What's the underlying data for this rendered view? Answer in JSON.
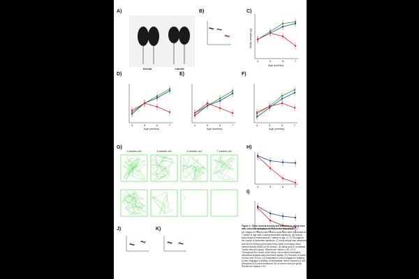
{
  "panels": {
    "A": {
      "label": "A)",
      "captions": [
        "Dorsal",
        "Lateral"
      ]
    },
    "B": {
      "label": "B)"
    },
    "C": {
      "label": "C)",
      "xlabel": "Age (weeks)",
      "ylabel": "Body weight (g)"
    },
    "D": {
      "label": "D)",
      "xlabel": "Age (weeks)"
    },
    "E": {
      "label": "E)",
      "xlabel": "Age (weeks)"
    },
    "F": {
      "label": "F)",
      "xlabel": "Age (weeks)"
    },
    "G": {
      "label": "G)",
      "cols": [
        "4 weeks old",
        "5 weeks old",
        "6 weeks old",
        "7 weeks old"
      ]
    },
    "H": {
      "label": "H)"
    },
    "I": {
      "label": "I)"
    },
    "J": {
      "label": "J)"
    },
    "K": {
      "label": "K)"
    }
  },
  "colors": {
    "green": "#2ca02c",
    "blue": "#1f3f9f",
    "red": "#d62728",
    "field": "#4cd94c"
  },
  "caption": {
    "title": "Figure 1 : Bone mineral density and behavior in young mice with inducible activation of PKA in the osteoblast.",
    "body": "(A) Images of Prkar1a and Prkar1a male mice after euthanasia at 7 weeks of age after 3 weeks tamoxifen injections. (B) Mouse body length at euthanasia at 7 weeks of age. (C-F) Throughout the course of tamoxifen injections, (C) body weight was measured and DEXA PIXImus performed every week to measure bone mineral density (BMD) of (D) femurs, (E) tibiae and (F) vertebrae. Twelve mice per group. Results are means ± SD. (G-I) Throughout the course of the study, non-evoked nociceptive behavioral analysis was performed weekly: (G) Records of tracks of mice over 30 min; (H) Ambulation (I) time engaged in walking, (I) time engaged in trotting. At euthanasia, serum calcium (J) and phosphorus (K) were measured. Six to seven mice per group. Results are means ± SD."
  },
  "chart_data": [
    {
      "panel": "C",
      "type": "line",
      "x": [
        4,
        5,
        6,
        7
      ],
      "xlabel": "Age (weeks)",
      "ylabel": "Body weight (g)",
      "series": [
        {
          "color": "green",
          "values": [
            14,
            16.5,
            19,
            19.5
          ]
        },
        {
          "color": "blue",
          "values": [
            14,
            16,
            18,
            19
          ]
        },
        {
          "color": "red",
          "values": [
            14,
            16,
            15,
            12
          ]
        }
      ]
    },
    {
      "panel": "D",
      "type": "line",
      "x": [
        4,
        5,
        6,
        7
      ],
      "xlabel": "Age (weeks)",
      "series": [
        {
          "color": "green",
          "values": [
            0.036,
            0.041,
            0.045,
            0.049
          ]
        },
        {
          "color": "blue",
          "values": [
            0.035,
            0.041,
            0.044,
            0.048
          ]
        },
        {
          "color": "red",
          "values": [
            0.037,
            0.041,
            0.039,
            0.036
          ]
        }
      ]
    },
    {
      "panel": "E",
      "type": "line",
      "x": [
        4,
        5,
        6,
        7
      ],
      "xlabel": "Age (weeks)",
      "series": [
        {
          "color": "green",
          "values": [
            0.034,
            0.037,
            0.04,
            0.043
          ]
        },
        {
          "color": "blue",
          "values": [
            0.033,
            0.037,
            0.039,
            0.042
          ]
        },
        {
          "color": "red",
          "values": [
            0.034,
            0.038,
            0.036,
            0.034
          ]
        }
      ]
    },
    {
      "panel": "F",
      "type": "line",
      "x": [
        4,
        5,
        6,
        7
      ],
      "xlabel": "Age (weeks)",
      "series": [
        {
          "color": "green",
          "values": [
            0.04,
            0.045,
            0.052,
            0.056
          ]
        },
        {
          "color": "blue",
          "values": [
            0.038,
            0.044,
            0.05,
            0.054
          ]
        },
        {
          "color": "red",
          "values": [
            0.041,
            0.045,
            0.047,
            0.044
          ]
        }
      ]
    },
    {
      "panel": "H",
      "type": "line",
      "x": [
        4,
        5,
        6,
        7
      ],
      "series": [
        {
          "color": "blue",
          "values": [
            195,
            160,
            150,
            145
          ]
        },
        {
          "color": "red",
          "values": [
            190,
            110,
            40,
            10
          ]
        }
      ]
    },
    {
      "panel": "I",
      "type": "line",
      "x": [
        4,
        5,
        6,
        7
      ],
      "series": [
        {
          "color": "blue",
          "values": [
            80,
            55,
            45,
            40
          ]
        },
        {
          "color": "red",
          "values": [
            75,
            30,
            12,
            5
          ]
        }
      ]
    },
    {
      "panel": "B",
      "type": "scatter",
      "categories": [
        "",
        "",
        ""
      ],
      "series": [
        {
          "color": "blue",
          "values": [
            9.4
          ]
        },
        {
          "color": "green",
          "values": [
            9.2
          ]
        },
        {
          "color": "red",
          "values": [
            7.8
          ]
        }
      ]
    },
    {
      "panel": "J",
      "type": "scatter",
      "categories": [
        "",
        ""
      ],
      "series": [
        {
          "color": "blue",
          "values": [
            9.3
          ]
        },
        {
          "color": "red",
          "values": [
            9.8
          ]
        }
      ]
    },
    {
      "panel": "K",
      "type": "scatter",
      "categories": [
        "",
        ""
      ],
      "series": [
        {
          "color": "blue",
          "values": [
            7.2
          ]
        },
        {
          "color": "red",
          "values": [
            7.0
          ]
        }
      ]
    }
  ]
}
